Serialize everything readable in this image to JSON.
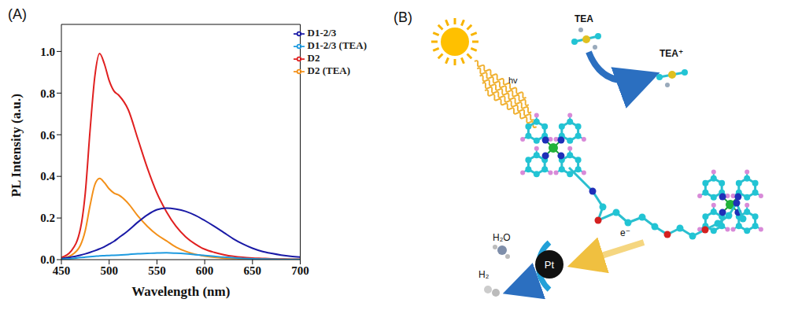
{
  "chart_data": {
    "type": "line",
    "title": "(A)",
    "x_label": "Wavelength (nm)",
    "y_label": "PL Intensity (a.u.)",
    "x": [
      450,
      460,
      470,
      475,
      480,
      485,
      490,
      495,
      500,
      505,
      510,
      520,
      530,
      540,
      550,
      560,
      570,
      580,
      590,
      600,
      610,
      620,
      630,
      640,
      650,
      660,
      670,
      680,
      690,
      700
    ],
    "series": [
      {
        "name": "D2",
        "color": "#e02020",
        "values": [
          0.01,
          0.04,
          0.15,
          0.32,
          0.62,
          0.88,
          0.99,
          0.94,
          0.86,
          0.81,
          0.79,
          0.72,
          0.58,
          0.44,
          0.32,
          0.23,
          0.16,
          0.11,
          0.075,
          0.05,
          0.035,
          0.024,
          0.016,
          0.011,
          0.008,
          0.006,
          0.004,
          0.003,
          0.002,
          0.002
        ]
      },
      {
        "name": "D2 (TEA)",
        "color": "#f39019",
        "values": [
          0.005,
          0.02,
          0.07,
          0.14,
          0.26,
          0.36,
          0.39,
          0.37,
          0.34,
          0.32,
          0.31,
          0.27,
          0.21,
          0.16,
          0.12,
          0.09,
          0.06,
          0.04,
          0.026,
          0.017,
          0.011,
          0.007,
          0.005,
          0.003,
          0.002,
          0.002,
          0.001,
          0.001,
          0.001,
          0.001
        ]
      },
      {
        "name": "D1-2/3",
        "color": "#1a1aa6",
        "values": [
          0.005,
          0.012,
          0.022,
          0.028,
          0.035,
          0.043,
          0.052,
          0.062,
          0.075,
          0.088,
          0.105,
          0.14,
          0.18,
          0.215,
          0.24,
          0.248,
          0.243,
          0.232,
          0.213,
          0.188,
          0.16,
          0.13,
          0.1,
          0.075,
          0.055,
          0.04,
          0.03,
          0.022,
          0.016,
          0.012
        ]
      },
      {
        "name": "D1-2/3 (TEA)",
        "color": "#1e9be0",
        "values": [
          0.002,
          0.005,
          0.01,
          0.012,
          0.014,
          0.016,
          0.018,
          0.019,
          0.02,
          0.021,
          0.022,
          0.025,
          0.028,
          0.03,
          0.032,
          0.033,
          0.031,
          0.028,
          0.024,
          0.02,
          0.016,
          0.012,
          0.009,
          0.006,
          0.004,
          0.003,
          0.002,
          0.001,
          0.001,
          0.001
        ]
      }
    ],
    "xlim": [
      450,
      700
    ],
    "xticks": [
      450,
      500,
      550,
      600,
      650,
      700
    ],
    "ylim": [
      0,
      1.13
    ],
    "yticks": [
      {
        "value": 0,
        "label": "0.0"
      },
      {
        "value": 0.2,
        "label": "0.2"
      },
      {
        "value": 0.4,
        "label": "0.4"
      },
      {
        "value": 0.6,
        "label": "0.6"
      },
      {
        "value": 0.8,
        "label": "0.8"
      },
      {
        "value": 1.0,
        "label": "1.0"
      }
    ],
    "grid": false,
    "legend": "upper right"
  },
  "diagram": {
    "label": "(B)",
    "light": "hv",
    "donor": "TEA",
    "donor_oxidized": "TEA⁺",
    "reactant": "H₂O",
    "product": "H₂",
    "catalyst": "Pt",
    "electron": "e⁻"
  }
}
